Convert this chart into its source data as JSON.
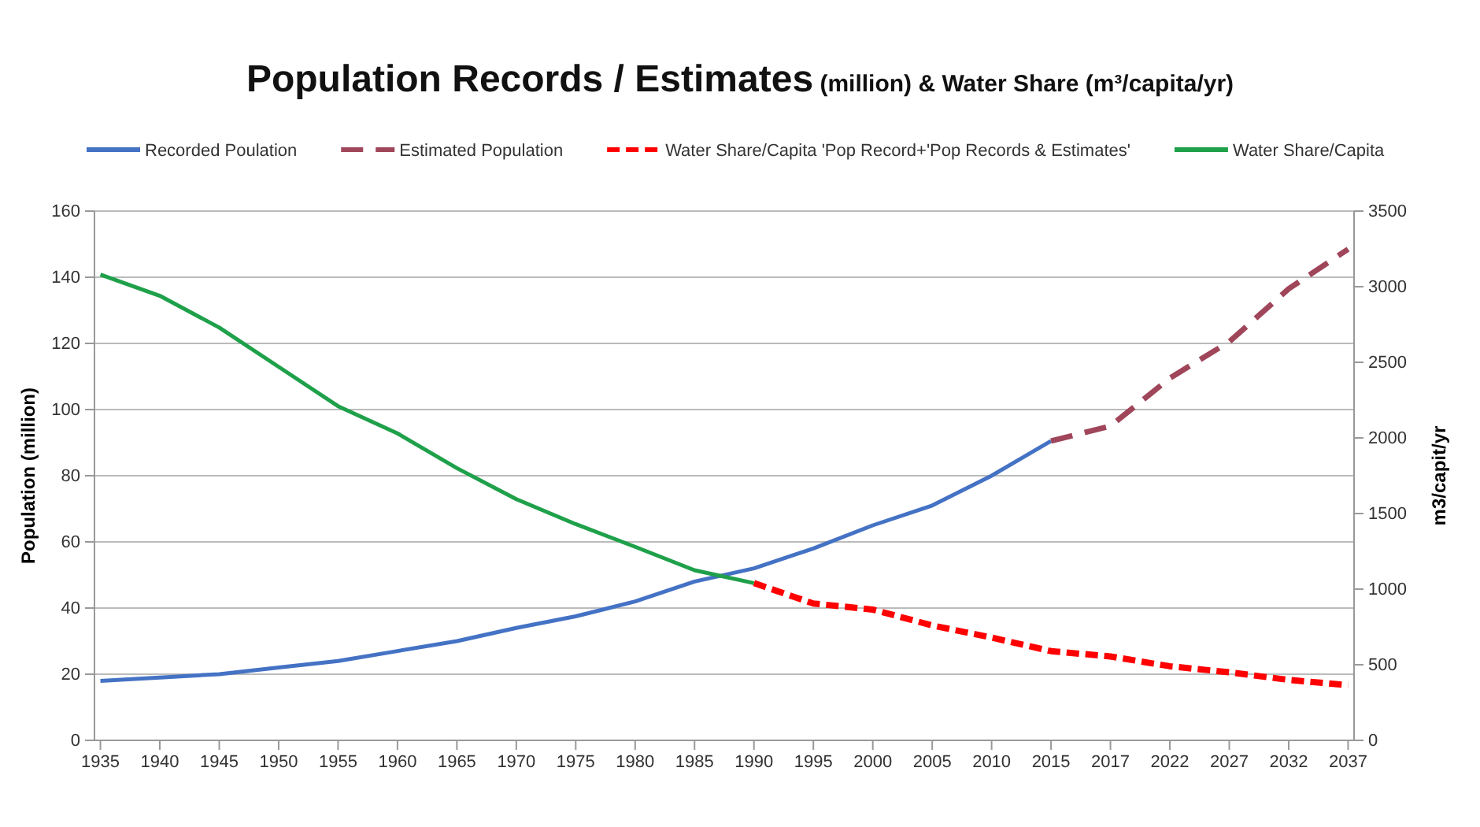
{
  "chart_data": {
    "type": "line",
    "title": "Population Records / Estimates",
    "subtitle": "(million) & Water Share (m³/capita/yr)",
    "ylabel": "Population (million)",
    "y2label": "m3/capit/yr",
    "categories": [
      "1935",
      "1940",
      "1945",
      "1950",
      "1955",
      "1960",
      "1965",
      "1970",
      "1975",
      "1980",
      "1985",
      "1990",
      "1995",
      "2000",
      "2005",
      "2010",
      "2015",
      "2017",
      "2022",
      "2027",
      "2032",
      "2037"
    ],
    "series": [
      {
        "name": "Recorded Poulation",
        "color": "#4472c4",
        "line_style": "solid",
        "values": [
          18,
          19,
          20,
          22,
          24,
          27,
          30,
          34,
          37.5,
          42,
          48,
          52,
          58,
          65,
          71,
          80,
          90.5,
          null,
          null,
          null,
          null,
          null
        ]
      },
      {
        "name": "Estimated Population",
        "color": "#a0465a",
        "line_style": "dashed",
        "values": [
          null,
          null,
          null,
          null,
          null,
          null,
          null,
          null,
          null,
          null,
          null,
          null,
          null,
          null,
          null,
          null,
          90.5,
          95,
          109.5,
          120.5,
          136.5,
          148.5
        ]
      },
      {
        "name": "Water Share/Capita  'Pop Record+'Pop Records & Estimates'",
        "color": "#ff0000",
        "line_style": "dotted",
        "axis": "y2",
        "values": [
          null,
          null,
          null,
          null,
          null,
          null,
          null,
          null,
          null,
          null,
          null,
          1040,
          905,
          865,
          760,
          680,
          590,
          555,
          490,
          450,
          400,
          365
        ]
      },
      {
        "name": "Water Share/Capita",
        "color": "#1fa04a",
        "line_style": "solid",
        "axis": "y2",
        "values": [
          3080,
          2940,
          2730,
          2470,
          2210,
          2030,
          1800,
          1595,
          1430,
          1280,
          1125,
          1040,
          null,
          null,
          null,
          null,
          null,
          null,
          null,
          null,
          null,
          null
        ]
      }
    ],
    "ylim": [
      0,
      160
    ],
    "yticks": [
      0,
      20,
      40,
      60,
      80,
      100,
      120,
      140,
      160
    ],
    "y2lim": [
      0,
      3500
    ],
    "y2ticks": [
      0,
      500,
      1000,
      1500,
      2000,
      2500,
      3000,
      3500
    ],
    "grid": "y",
    "legend": "top"
  }
}
